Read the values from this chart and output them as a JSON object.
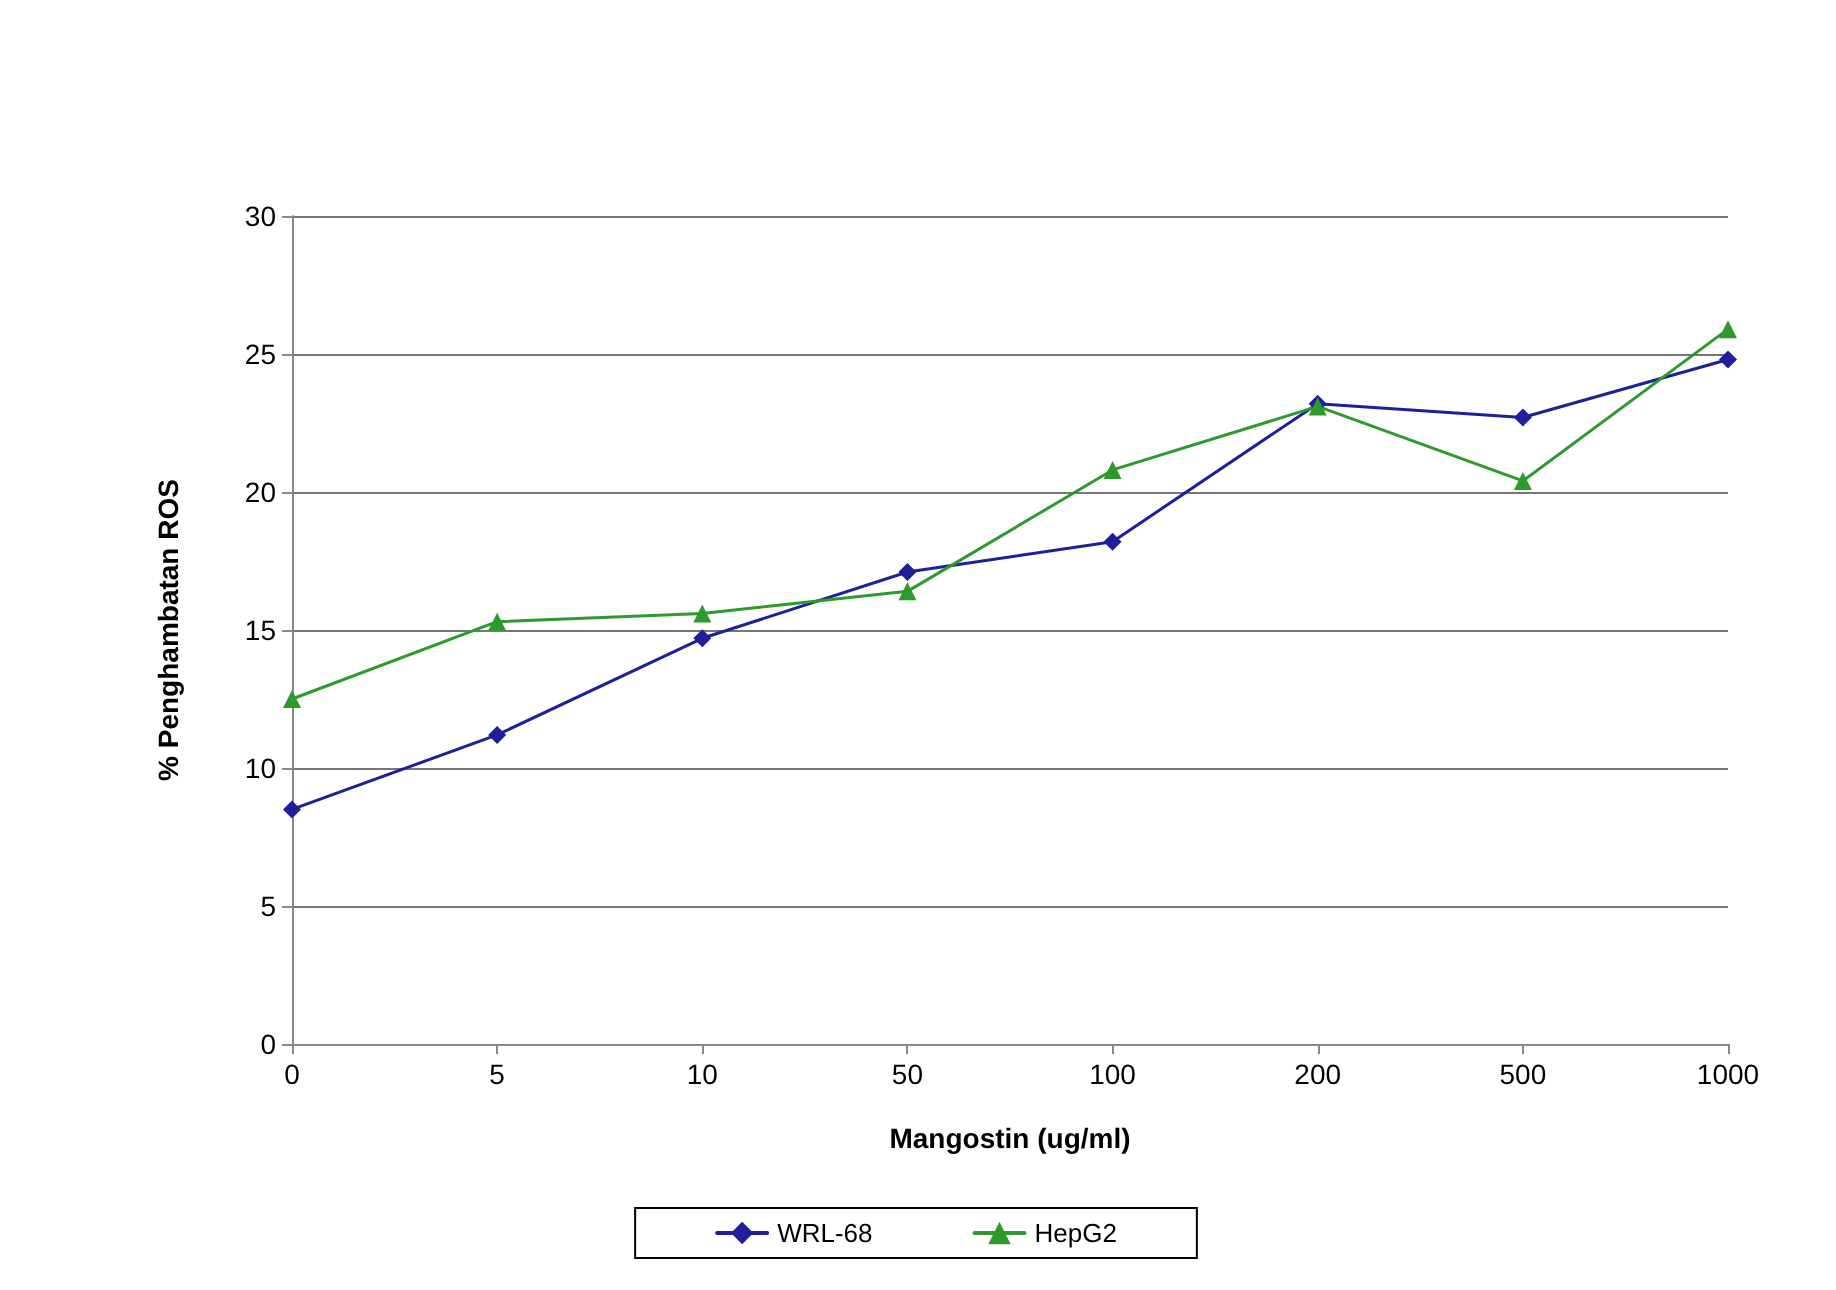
{
  "chart_data": {
    "type": "line",
    "xlabel": "Mangostin (ug/ml)",
    "ylabel": "% Penghambatan ROS",
    "categories": [
      "0",
      "5",
      "10",
      "50",
      "100",
      "200",
      "500",
      "1000"
    ],
    "series": [
      {
        "name": "WRL-68",
        "color": "#1f1f99",
        "marker": "diamond",
        "values": [
          8.5,
          11.2,
          14.7,
          17.1,
          18.2,
          23.2,
          22.7,
          24.8
        ]
      },
      {
        "name": "HepG2",
        "color": "#2e9a2e",
        "marker": "triangle",
        "values": [
          12.5,
          15.3,
          15.6,
          16.4,
          20.8,
          23.1,
          20.4,
          25.9
        ]
      }
    ],
    "ylim": [
      0,
      30
    ],
    "yticks": [
      0,
      5,
      10,
      15,
      20,
      25,
      30
    ],
    "grid": "y",
    "legend": "bottom",
    "line_style": "solid"
  }
}
